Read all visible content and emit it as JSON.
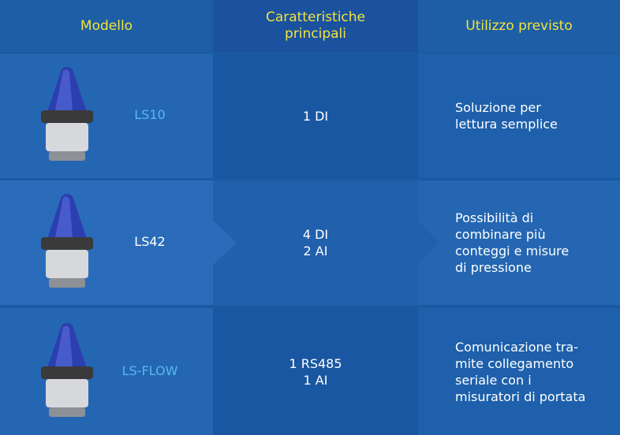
{
  "header": {
    "columns": [
      "Modello",
      "Caratteristiche principali",
      "Utilizzo previsto"
    ]
  },
  "table": {
    "rows": [
      {
        "model": "LS10",
        "features": [
          "1 DI"
        ],
        "usage": [
          "Soluzione per",
          "lettura semplice"
        ]
      },
      {
        "model": "LS42",
        "features": [
          "4 DI",
          "2 AI"
        ],
        "usage": [
          "Possibilità di",
          "combinare più",
          "conteggi e misure",
          "di pressione"
        ]
      },
      {
        "model": "LS-FLOW",
        "features": [
          "1 RS485",
          "1 AI"
        ],
        "usage": [
          "Comunicazione tra-",
          "mite collegamento",
          "seriale con i",
          "misuratori di portata"
        ]
      }
    ]
  }
}
